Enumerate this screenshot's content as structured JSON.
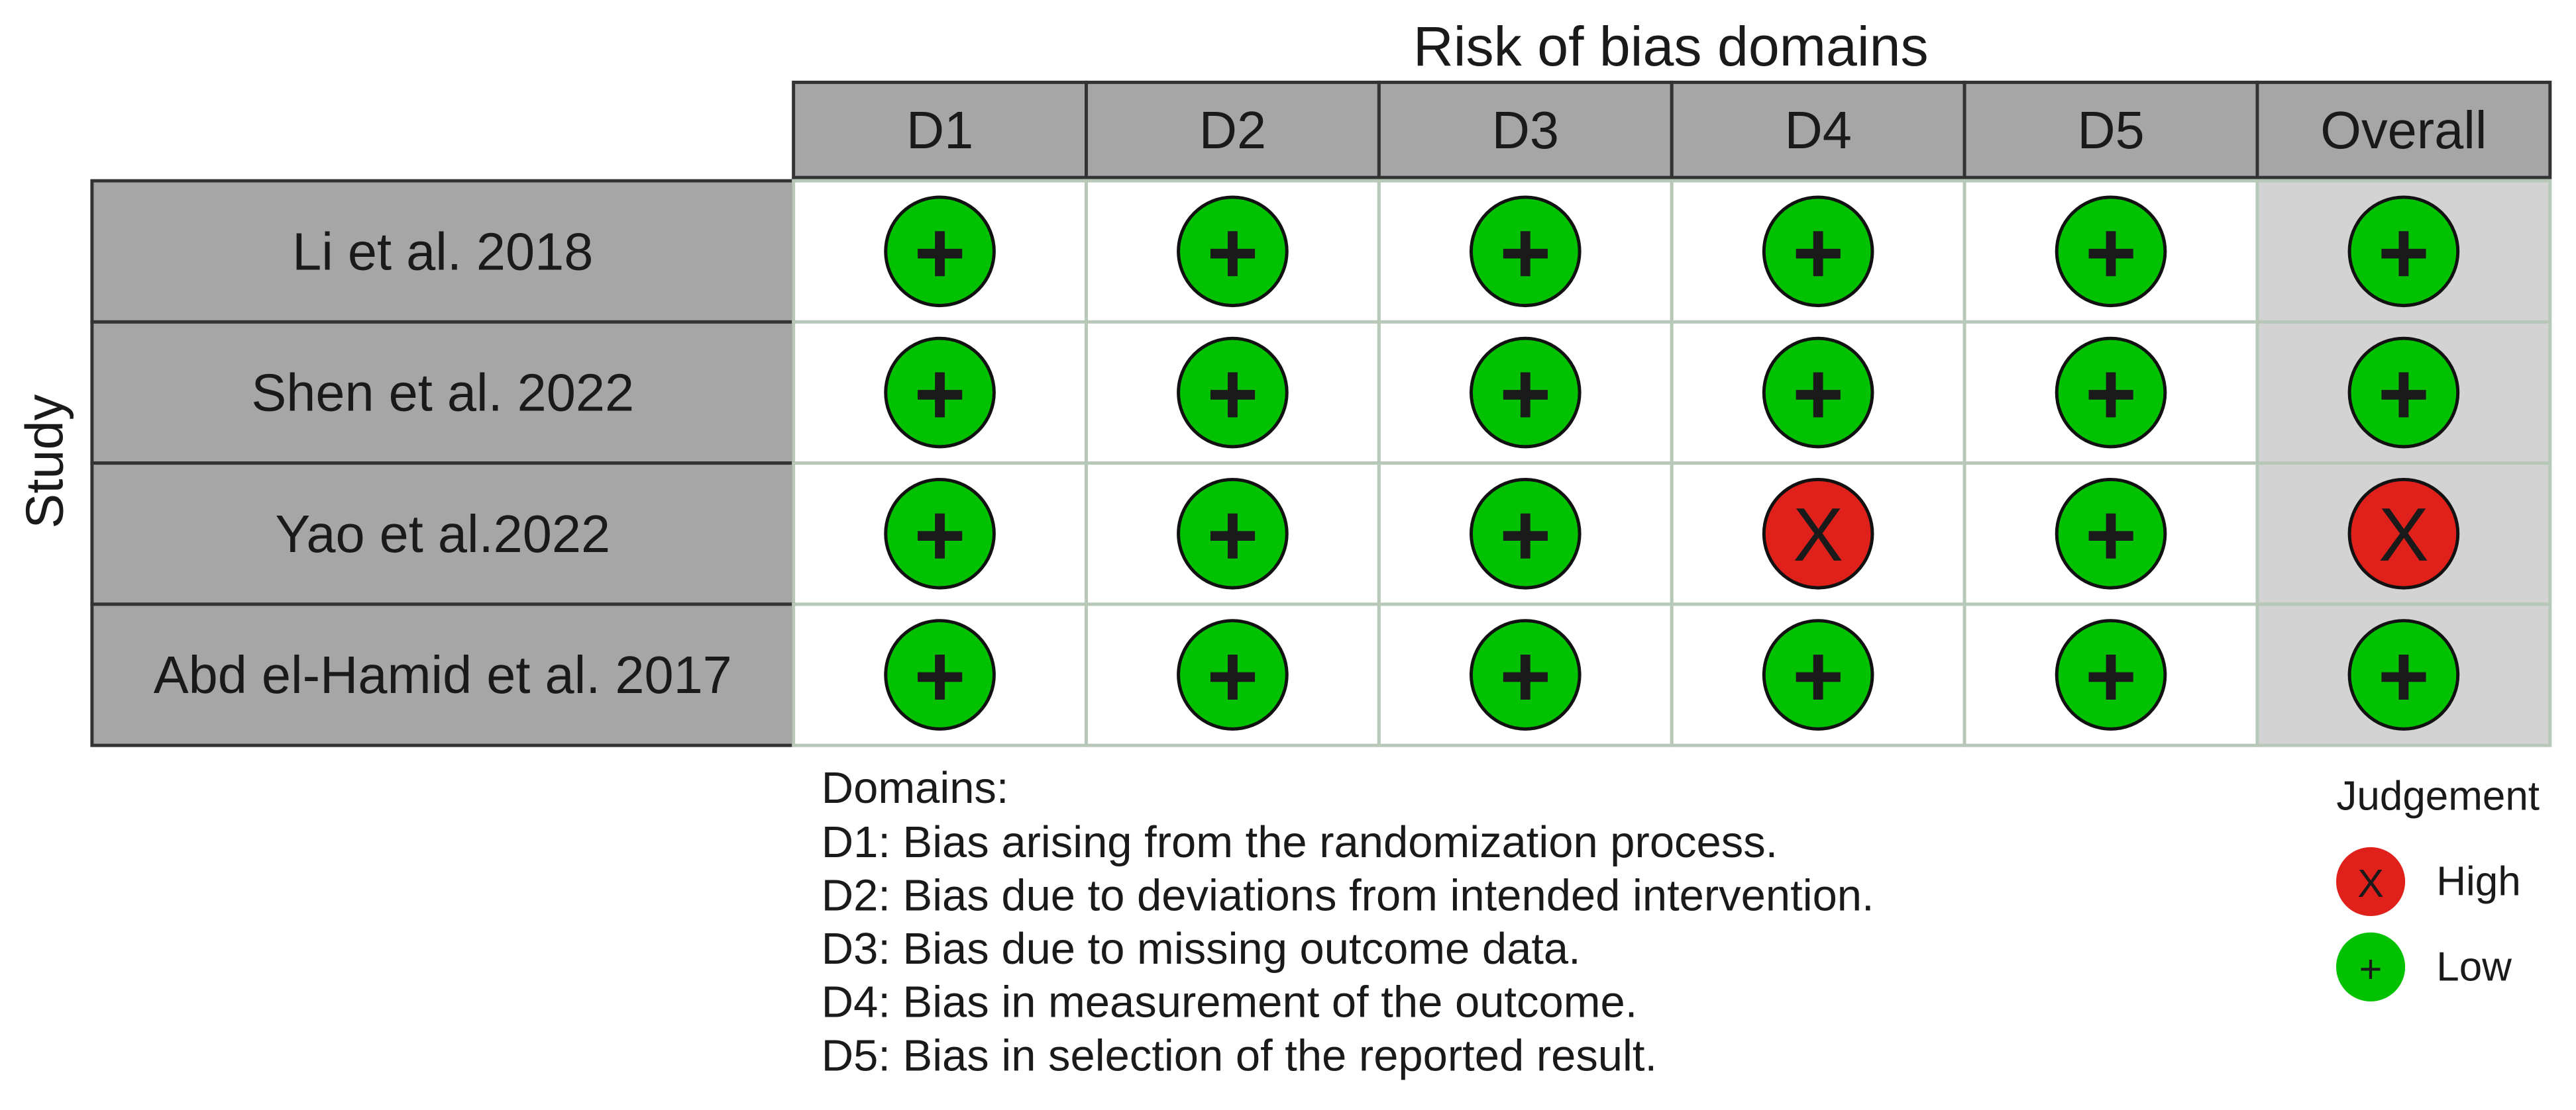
{
  "title": "Risk of bias domains",
  "y_label": "Study",
  "columns": [
    "D1",
    "D2",
    "D3",
    "D4",
    "D5",
    "Overall"
  ],
  "rows": [
    {
      "study": "Li et al. 2018",
      "judgements": [
        "+",
        "+",
        "+",
        "+",
        "+",
        "+"
      ]
    },
    {
      "study": "Shen et al. 2022",
      "judgements": [
        "+",
        "+",
        "+",
        "+",
        "+",
        "+"
      ]
    },
    {
      "study": "Yao et al.2022",
      "judgements": [
        "+",
        "+",
        "+",
        "X",
        "+",
        "X"
      ]
    },
    {
      "study": "Abd el-Hamid et al. 2017",
      "judgements": [
        "+",
        "+",
        "+",
        "+",
        "+",
        "+"
      ]
    }
  ],
  "domains": {
    "heading": "Domains:",
    "items": [
      "D1: Bias arising from the randomization process.",
      "D2: Bias due to deviations from intended intervention.",
      "D3: Bias due to missing outcome data.",
      "D4: Bias in measurement of the outcome.",
      "D5: Bias in selection of the reported result."
    ]
  },
  "legend": {
    "title": "Judgement",
    "items": [
      {
        "symbol": "X",
        "label": "High",
        "color": "#e0201b"
      },
      {
        "symbol": "+",
        "label": "Low",
        "color": "#02c100"
      }
    ]
  }
}
